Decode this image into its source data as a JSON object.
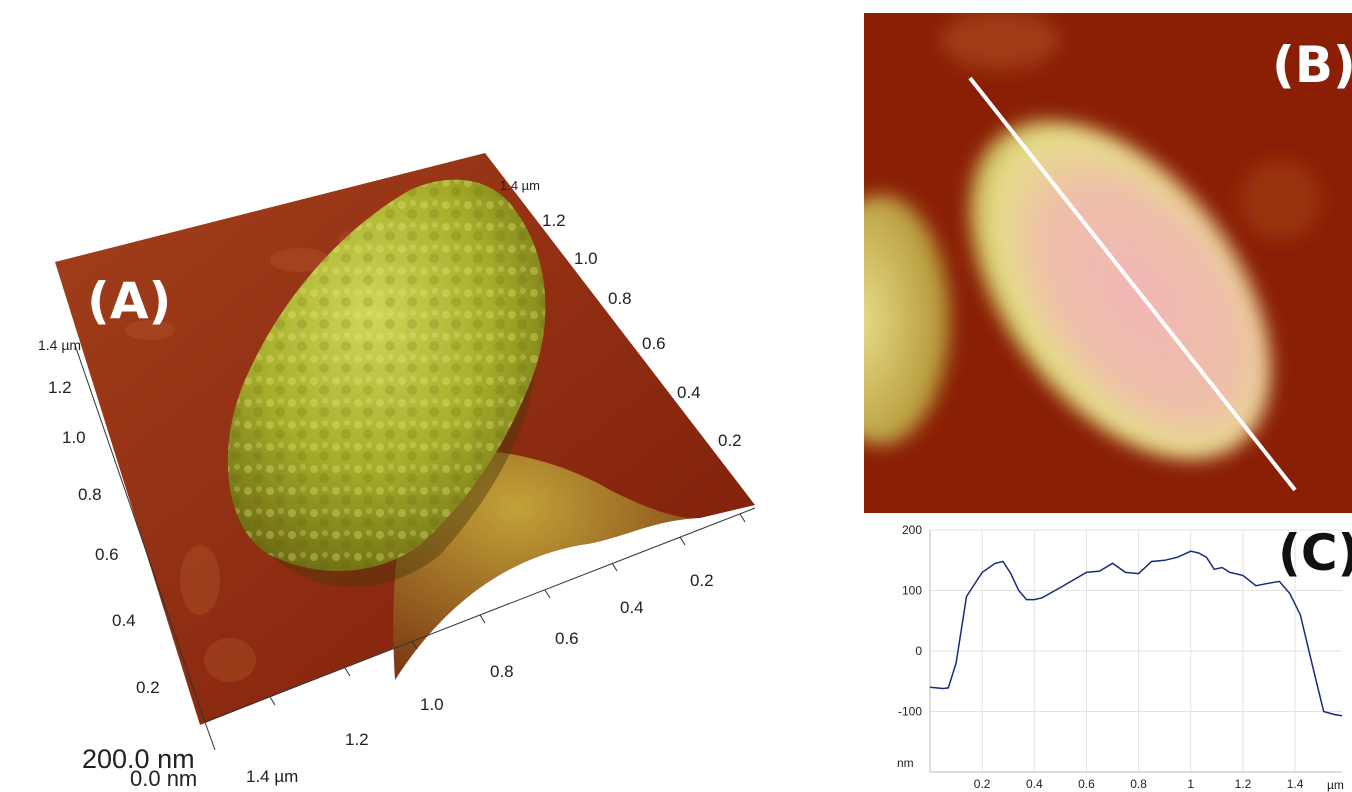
{
  "panels": {
    "a": {
      "label": "(A)",
      "x_axis_ticks": [
        "0.2",
        "0.4",
        "0.6",
        "0.8",
        "1.0",
        "1.2",
        "1.4 µm"
      ],
      "y_axis_ticks": [
        "0.2",
        "0.4",
        "0.6",
        "0.8",
        "1.0",
        "1.2",
        "1.4 µm"
      ],
      "back_axis_ticks": [
        "0.2",
        "0.4",
        "0.6",
        "0.8",
        "1.0",
        "1.2",
        "1.4 µm"
      ],
      "z_max": "200.0 nm",
      "z_min": "0.0 nm"
    },
    "b": {
      "label": "(B)"
    },
    "c": {
      "label": "(C)"
    }
  },
  "chart_data": [
    {
      "type": "line",
      "title": "",
      "xlabel": "µm",
      "ylabel": "nm",
      "xlim": [
        0,
        1.58
      ],
      "ylim": [
        -200,
        200
      ],
      "x_ticks": [
        "0.2",
        "0.4",
        "0.6",
        "0.8",
        "1",
        "1.2",
        "1.4"
      ],
      "y_ticks": [
        "200",
        "100",
        "0",
        "-100"
      ],
      "grid": true,
      "series": [
        {
          "x": [
            0,
            0.05,
            0.07,
            0.1,
            0.14,
            0.2,
            0.25,
            0.28,
            0.31,
            0.34,
            0.37,
            0.4,
            0.43,
            0.5,
            0.6,
            0.65,
            0.7,
            0.75,
            0.8,
            0.85,
            0.9,
            0.95,
            1.0,
            1.03,
            1.06,
            1.09,
            1.12,
            1.15,
            1.2,
            1.25,
            1.3,
            1.34,
            1.38,
            1.42,
            1.47,
            1.51,
            1.55,
            1.58
          ],
          "y": [
            -60,
            -62,
            -61,
            -20,
            90,
            130,
            145,
            148,
            128,
            100,
            85,
            85,
            88,
            105,
            130,
            132,
            145,
            130,
            128,
            148,
            150,
            155,
            165,
            162,
            155,
            135,
            138,
            130,
            125,
            108,
            112,
            115,
            95,
            60,
            -30,
            -100,
            -105,
            -107
          ],
          "color": "#1a2a7a"
        }
      ]
    }
  ]
}
